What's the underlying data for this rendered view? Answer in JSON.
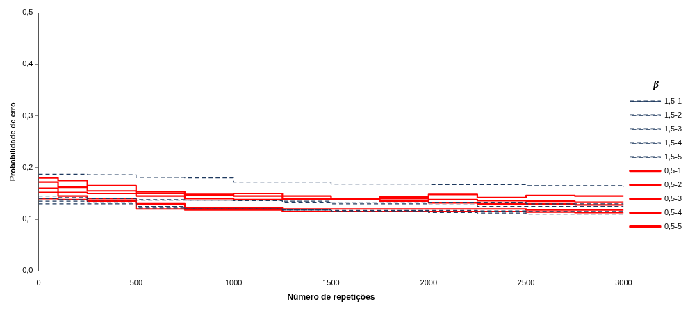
{
  "chart_data": {
    "type": "step",
    "xlabel": "Número de repetições",
    "ylabel": "Probabilidade de erro",
    "legend_title": "β",
    "legend": "right",
    "grid": false,
    "line_style": "solid",
    "marker": "none",
    "x": [
      0,
      100,
      250,
      500,
      750,
      1000,
      1250,
      1500,
      1750,
      2000,
      2250,
      2500,
      2750,
      3000
    ],
    "xlim": [
      0,
      3000
    ],
    "xticks": [
      0,
      500,
      1000,
      1500,
      2000,
      2500,
      3000
    ],
    "ylim": [
      0,
      0.5
    ],
    "yticks": [
      {
        "value": 0,
        "label": "0,0"
      },
      {
        "value": 0.1,
        "label": "0,1"
      },
      {
        "value": 0.2,
        "label": "0,2"
      },
      {
        "value": 0.3,
        "label": "0,3"
      },
      {
        "value": 0.4,
        "label": "0,4"
      },
      {
        "value": 0.5,
        "label": "0,5"
      }
    ],
    "series": [
      {
        "name": "1,5-1",
        "color": "#1f3a5f",
        "line_style": "dashed",
        "values": [
          0.187,
          0.187,
          0.186,
          0.181,
          0.18,
          0.172,
          0.172,
          0.168,
          0.168,
          0.167,
          0.167,
          0.165,
          0.165,
          0.162
        ]
      },
      {
        "name": "1,5-2",
        "color": "#1f3a5f",
        "line_style": "dashed",
        "values": [
          0.145,
          0.142,
          0.14,
          0.138,
          0.137,
          0.137,
          0.135,
          0.133,
          0.133,
          0.132,
          0.132,
          0.13,
          0.13,
          0.13
        ]
      },
      {
        "name": "1,5-3",
        "color": "#1f3a5f",
        "line_style": "dashed",
        "values": [
          0.14,
          0.138,
          0.137,
          0.137,
          0.137,
          0.136,
          0.132,
          0.13,
          0.13,
          0.128,
          0.125,
          0.125,
          0.125,
          0.125
        ]
      },
      {
        "name": "1,5-4",
        "color": "#1f3a5f",
        "line_style": "dashed",
        "values": [
          0.135,
          0.135,
          0.133,
          0.125,
          0.12,
          0.12,
          0.118,
          0.117,
          0.117,
          0.117,
          0.116,
          0.115,
          0.115,
          0.115
        ]
      },
      {
        "name": "1,5-5",
        "color": "#1f3a5f",
        "line_style": "dashed",
        "values": [
          0.13,
          0.13,
          0.13,
          0.122,
          0.12,
          0.12,
          0.118,
          0.115,
          0.115,
          0.113,
          0.112,
          0.11,
          0.11,
          0.11
        ]
      },
      {
        "name": "0,5-1",
        "color": "#ff0000",
        "values": [
          0.18,
          0.175,
          0.165,
          0.153,
          0.148,
          0.15,
          0.145,
          0.14,
          0.143,
          0.148,
          0.142,
          0.146,
          0.145,
          0.145
        ]
      },
      {
        "name": "0,5-2",
        "color": "#ff0000",
        "values": [
          0.172,
          0.162,
          0.155,
          0.15,
          0.147,
          0.145,
          0.14,
          0.14,
          0.14,
          0.138,
          0.136,
          0.135,
          0.133,
          0.133
        ]
      },
      {
        "name": "0,5-3",
        "color": "#ff0000",
        "values": [
          0.16,
          0.152,
          0.15,
          0.145,
          0.14,
          0.138,
          0.138,
          0.138,
          0.135,
          0.132,
          0.13,
          0.13,
          0.128,
          0.128
        ]
      },
      {
        "name": "0,5-4",
        "color": "#ff0000",
        "values": [
          0.152,
          0.145,
          0.14,
          0.13,
          0.122,
          0.122,
          0.12,
          0.12,
          0.12,
          0.12,
          0.12,
          0.118,
          0.118,
          0.118
        ]
      },
      {
        "name": "0,5-5",
        "color": "#ff0000",
        "values": [
          0.14,
          0.138,
          0.135,
          0.12,
          0.118,
          0.118,
          0.115,
          0.115,
          0.115,
          0.115,
          0.115,
          0.114,
          0.113,
          0.113
        ]
      }
    ]
  }
}
